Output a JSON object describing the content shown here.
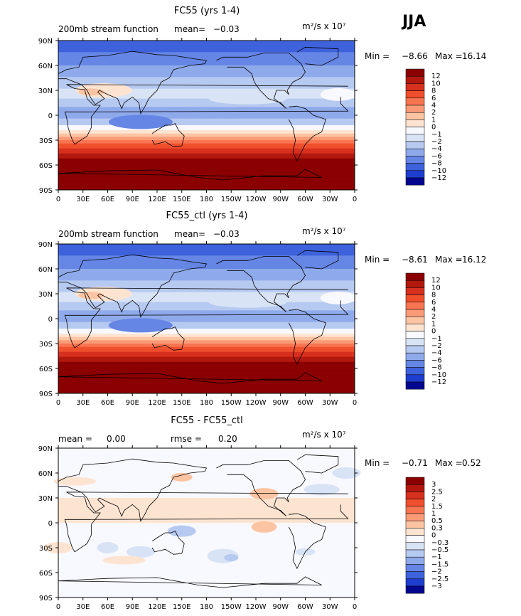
{
  "season": "JJA",
  "colors": {
    "dark_red": "#8b0000",
    "ocean_blue": "#1e3ecf",
    "land_line": "#000000"
  },
  "chart_data": [
    {
      "type": "heatmap",
      "title": "FC55 (yrs 1-4)",
      "field": "200mb stream function",
      "mean_label": "mean=",
      "mean_value": "−0.03",
      "units": "m²/s x 10⁷",
      "min_label": "Min =",
      "min_value": "−8.66",
      "max_label": "Max =",
      "max_value": "16.14",
      "xticks": [
        "0",
        "30E",
        "60E",
        "90E",
        "120E",
        "150E",
        "180",
        "150W",
        "120W",
        "90W",
        "60W",
        "30W",
        "0"
      ],
      "yticks": [
        "90N",
        "60N",
        "30N",
        "0",
        "30S",
        "60S",
        "90S"
      ],
      "colorbar": {
        "labels": [
          "12",
          "10",
          "8",
          "6",
          "4",
          "2",
          "1",
          "0",
          "−1",
          "−2",
          "−4",
          "−6",
          "−8",
          "−10",
          "−12"
        ],
        "colors": [
          "#8b0000",
          "#b2180e",
          "#d7301f",
          "#ef4f2c",
          "#f87551",
          "#fb9a76",
          "#fdc4a3",
          "#fde4d1",
          "#f8f8ff",
          "#d8e3f5",
          "#b6c9f0",
          "#8faaeb",
          "#6686e5",
          "#3e62dc",
          "#1e3ecf",
          "#03078f"
        ]
      }
    },
    {
      "type": "heatmap",
      "title": "FC55_ctl (yrs 1-4)",
      "field": "200mb stream function",
      "mean_label": "mean=",
      "mean_value": "−0.03",
      "units": "m²/s x 10⁷",
      "min_label": "Min =",
      "min_value": "−8.61",
      "max_label": "Max =",
      "max_value": "16.12",
      "xticks": [
        "0",
        "30E",
        "60E",
        "90E",
        "120E",
        "150E",
        "180",
        "150W",
        "120W",
        "90W",
        "60W",
        "30W",
        "0"
      ],
      "yticks": [
        "90N",
        "60N",
        "30N",
        "0",
        "30S",
        "60S",
        "90S"
      ],
      "colorbar": {
        "labels": [
          "12",
          "10",
          "8",
          "6",
          "4",
          "2",
          "1",
          "0",
          "−1",
          "−2",
          "−4",
          "−6",
          "−8",
          "−10",
          "−12"
        ],
        "colors": [
          "#8b0000",
          "#b2180e",
          "#d7301f",
          "#ef4f2c",
          "#f87551",
          "#fb9a76",
          "#fdc4a3",
          "#fde4d1",
          "#f8f8ff",
          "#d8e3f5",
          "#b6c9f0",
          "#8faaeb",
          "#6686e5",
          "#3e62dc",
          "#1e3ecf",
          "#03078f"
        ]
      }
    },
    {
      "type": "heatmap",
      "title": "FC55 - FC55_ctl",
      "mean_label": "mean =",
      "mean_value": "0.00",
      "rmse_label": "rmse =",
      "rmse_value": "0.20",
      "units": "m²/s x 10⁷",
      "min_label": "Min =",
      "min_value": "−0.71",
      "max_label": "Max =",
      "max_value": "0.52",
      "xticks": [
        "0",
        "30E",
        "60E",
        "90E",
        "120E",
        "150E",
        "180",
        "150W",
        "120W",
        "90W",
        "60W",
        "30W",
        "0"
      ],
      "yticks": [
        "90N",
        "60N",
        "30N",
        "0",
        "30S",
        "60S",
        "90S"
      ],
      "colorbar": {
        "labels": [
          "3",
          "2.5",
          "2",
          "1.5",
          "1",
          "0.5",
          "0.3",
          "0",
          "−0.3",
          "−0.5",
          "−1",
          "−1.5",
          "−2",
          "−2.5",
          "−3"
        ],
        "colors": [
          "#8b0000",
          "#b2180e",
          "#d7301f",
          "#ef4f2c",
          "#f87551",
          "#fb9a76",
          "#fdc4a3",
          "#fde4d1",
          "#f8f8ff",
          "#d8e3f5",
          "#b6c9f0",
          "#8faaeb",
          "#6686e5",
          "#3e62dc",
          "#1e3ecf",
          "#03078f"
        ]
      }
    }
  ]
}
